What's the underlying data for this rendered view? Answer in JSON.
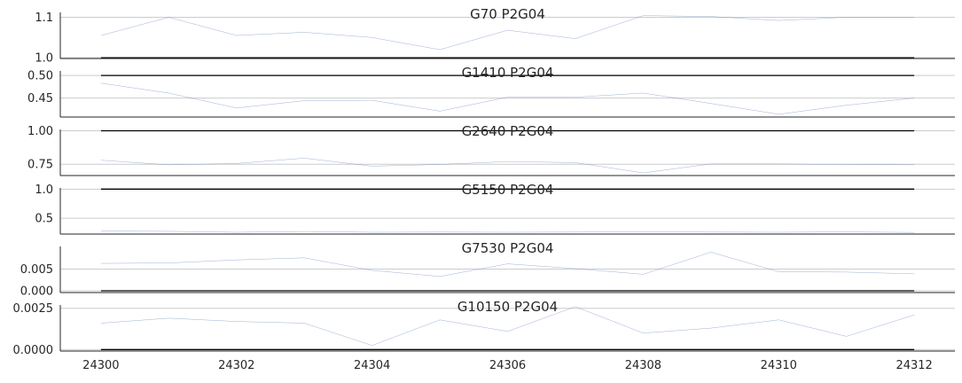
{
  "chart_data": [
    {
      "type": "line",
      "title": "G70 P2G04",
      "x": [
        24300,
        24301,
        24302,
        24303,
        24304,
        24305,
        24306,
        24307,
        24308,
        24309,
        24310,
        24311,
        24312
      ],
      "series": [
        {
          "values": [
            1.055,
            1.1,
            1.055,
            1.063,
            1.05,
            1.02,
            1.068,
            1.047,
            1.104,
            1.102,
            1.092,
            1.1,
            1.1
          ],
          "color": "#4c72b0"
        },
        {
          "values": [
            1.0,
            1.0,
            1.0,
            1.0,
            1.0,
            1.0,
            1.0,
            1.0,
            1.0,
            1.0,
            1.0,
            1.0,
            1.0
          ],
          "color": "#000000"
        }
      ],
      "yticks": [
        1.0,
        1.1
      ],
      "ytick_labels": [
        "1.0",
        "1.1"
      ],
      "ylim": [
        0.998,
        1.112
      ],
      "grid": true
    },
    {
      "type": "line",
      "title": "G1410 P2G04",
      "x": [
        24300,
        24301,
        24302,
        24303,
        24304,
        24305,
        24306,
        24307,
        24308,
        24309,
        24310,
        24311,
        24312
      ],
      "series": [
        {
          "values": [
            0.483,
            0.461,
            0.428,
            0.444,
            0.445,
            0.421,
            0.452,
            0.452,
            0.461,
            0.438,
            0.414,
            0.434,
            0.45
          ],
          "color": "#4c72b0"
        },
        {
          "values": [
            0.5,
            0.5,
            0.5,
            0.5,
            0.5,
            0.5,
            0.5,
            0.5,
            0.5,
            0.5,
            0.5,
            0.5,
            0.5
          ],
          "color": "#000000"
        }
      ],
      "yticks": [
        0.45,
        0.5
      ],
      "ytick_labels": [
        "0.45",
        "0.50"
      ],
      "ylim": [
        0.408,
        0.51
      ],
      "grid": true
    },
    {
      "type": "line",
      "title": "G2640 P2G04",
      "x": [
        24300,
        24301,
        24302,
        24303,
        24304,
        24305,
        24306,
        24307,
        24308,
        24309,
        24310,
        24311,
        24312
      ],
      "series": [
        {
          "values": [
            0.78,
            0.745,
            0.755,
            0.795,
            0.735,
            0.748,
            0.77,
            0.762,
            0.685,
            0.752,
            0.752,
            0.748,
            0.745
          ],
          "color": "#4c72b0"
        },
        {
          "values": [
            1.0,
            1.0,
            1.0,
            1.0,
            1.0,
            1.0,
            1.0,
            1.0,
            1.0,
            1.0,
            1.0,
            1.0,
            1.0
          ],
          "color": "#000000"
        }
      ],
      "yticks": [
        0.75,
        1.0
      ],
      "ytick_labels": [
        "0.75",
        "1.00"
      ],
      "ylim": [
        0.665,
        1.01
      ],
      "grid": true
    },
    {
      "type": "line",
      "title": "G5150 P2G04",
      "x": [
        24300,
        24301,
        24302,
        24303,
        24304,
        24305,
        24306,
        24307,
        24308,
        24309,
        24310,
        24311,
        24312
      ],
      "series": [
        {
          "values": [
            0.28,
            0.275,
            0.258,
            0.272,
            0.258,
            0.262,
            0.258,
            0.262,
            0.268,
            0.262,
            0.258,
            0.265,
            0.255
          ],
          "color": "#4c72b0"
        },
        {
          "values": [
            1.0,
            1.0,
            1.0,
            1.0,
            1.0,
            1.0,
            1.0,
            1.0,
            1.0,
            1.0,
            1.0,
            1.0,
            1.0
          ],
          "color": "#000000"
        }
      ],
      "yticks": [
        0.5,
        1.0
      ],
      "ytick_labels": [
        "0.5",
        "1.0"
      ],
      "ylim": [
        0.228,
        1.02
      ],
      "grid": true
    },
    {
      "type": "line",
      "title": "G7530 P2G04",
      "x": [
        24300,
        24301,
        24302,
        24303,
        24304,
        24305,
        24306,
        24307,
        24308,
        24309,
        24310,
        24311,
        24312
      ],
      "series": [
        {
          "values": [
            0.0063,
            0.0064,
            0.0071,
            0.0076,
            0.0047,
            0.0033,
            0.0062,
            0.0051,
            0.0038,
            0.0089,
            0.0044,
            0.0043,
            0.0039
          ],
          "color": "#4c72b0"
        },
        {
          "values": [
            0.0,
            0.0,
            0.0,
            0.0,
            0.0,
            0.0,
            0.0,
            0.0,
            0.0,
            0.0,
            0.0,
            0.0,
            0.0
          ],
          "color": "#000000"
        }
      ],
      "yticks": [
        0.0,
        0.005
      ],
      "ytick_labels": [
        "0.000",
        "0.005"
      ],
      "ylim": [
        -0.0004,
        0.0102
      ],
      "grid": true
    },
    {
      "type": "line",
      "title": "G10150 P2G04",
      "x": [
        24300,
        24301,
        24302,
        24303,
        24304,
        24305,
        24306,
        24307,
        24308,
        24309,
        24310,
        24311,
        24312
      ],
      "series": [
        {
          "values": [
            0.0016,
            0.0019,
            0.0017,
            0.0016,
            0.00025,
            0.0018,
            0.0011,
            0.0026,
            0.001,
            0.0013,
            0.0018,
            0.0008,
            0.0021
          ],
          "color": "#4c72b0"
        },
        {
          "values": [
            0.0,
            0.0,
            0.0,
            0.0,
            0.0,
            0.0,
            0.0,
            0.0,
            0.0,
            0.0,
            0.0,
            0.0,
            0.0
          ],
          "color": "#000000"
        }
      ],
      "yticks": [
        0.0,
        0.0025
      ],
      "ytick_labels": [
        "0.0000",
        "0.0025"
      ],
      "ylim": [
        -9e-05,
        0.0027
      ],
      "grid": true
    }
  ],
  "x_axis": {
    "ticks": [
      24300,
      24302,
      24304,
      24306,
      24308,
      24310,
      24312
    ],
    "tick_labels": [
      "24300",
      "24302",
      "24304",
      "24306",
      "24308",
      "24310",
      "24312"
    ],
    "xlim": [
      24299.4,
      24312.6
    ]
  },
  "colors": {
    "series": "#4c72b0",
    "reference": "#000000",
    "grid": "#cccccc",
    "axis": "#262626"
  }
}
